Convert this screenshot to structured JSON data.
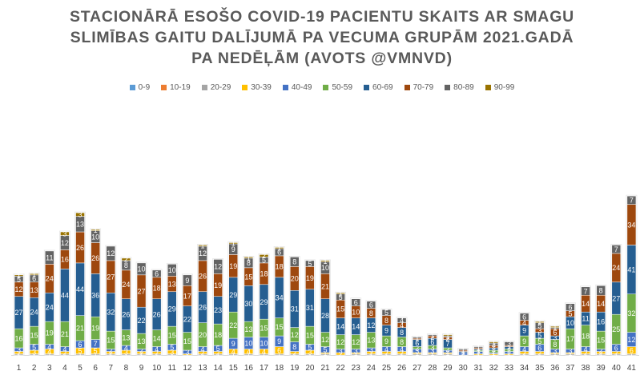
{
  "title_lines": [
    "STACIONĀRĀ ESOŠO COVID-19 PACIENTU SKAITS AR SMAGU",
    "SLIMĪBAS GAITU DALĪJUMĀ PA VECUMA GRUPĀM 2021.GADĀ",
    "PA NEDĒĻĀM (AVOTS @VMNVD)"
  ],
  "chart_data": {
    "type": "bar",
    "stacked": true,
    "title": "STACIONĀRĀ ESOŠO COVID-19 PACIENTU SKAITS AR SMAGU SLIMĪBAS GAITU DALĪJUMĀ PA VECUMA GRUPĀM 2021.GADĀ PA NEDĒĻĀM (AVOTS @VMNVD)",
    "legend_position": "top",
    "grid": false,
    "categories": [
      "1",
      "2",
      "3",
      "4",
      "5",
      "6",
      "7",
      "8",
      "9",
      "10",
      "11",
      "12",
      "13",
      "14",
      "15",
      "16",
      "17",
      "18",
      "19",
      "20",
      "21",
      "22",
      "23",
      "24",
      "25",
      "26",
      "27",
      "28",
      "29",
      "30",
      "31",
      "32",
      "33",
      "34",
      "35",
      "36",
      "37",
      "38",
      "39",
      "40",
      "41"
    ],
    "series": [
      {
        "name": "0-9",
        "color": "#5B9BD5",
        "values": [
          0,
          0,
          0,
          0,
          0,
          0,
          0,
          0,
          0,
          0,
          0,
          0,
          0,
          0,
          0,
          0,
          0,
          0,
          0,
          0,
          0,
          0,
          0,
          0,
          0,
          0,
          0,
          0,
          0,
          0,
          0,
          0,
          0,
          0,
          0,
          0,
          0,
          0,
          0,
          0,
          0
        ]
      },
      {
        "name": "10-19",
        "color": "#ED7D31",
        "values": [
          0,
          0,
          0,
          0,
          0,
          0,
          0,
          0,
          0,
          0,
          0,
          0,
          0,
          0,
          0,
          0,
          0,
          0,
          0,
          0,
          0,
          0,
          0,
          0,
          0,
          0,
          0,
          0,
          0,
          0,
          0,
          0,
          0,
          0,
          0,
          0,
          0,
          0,
          0,
          0,
          0
        ]
      },
      {
        "name": "20-29",
        "color": "#A5A5A5",
        "values": [
          1,
          1,
          1,
          1,
          1,
          1,
          1,
          1,
          1,
          1,
          1,
          0,
          1,
          1,
          1,
          1,
          1,
          1,
          1,
          1,
          1,
          0,
          1,
          1,
          1,
          1,
          1,
          1,
          1,
          0,
          0,
          0,
          0,
          1,
          1,
          1,
          1,
          1,
          1,
          1,
          1
        ]
      },
      {
        "name": "30-39",
        "color": "#FFC000",
        "values": [
          2,
          3,
          4,
          2,
          5,
          5,
          2,
          3,
          2,
          2,
          3,
          1,
          2,
          2,
          4,
          4,
          4,
          6,
          2,
          3,
          1,
          2,
          1,
          2,
          2,
          2,
          1,
          1,
          1,
          0,
          1,
          1,
          1,
          2,
          2,
          1,
          1,
          2,
          2,
          2,
          6
        ]
      },
      {
        "name": "40-49",
        "color": "#4472C4",
        "values": [
          3,
          5,
          4,
          4,
          6,
          7,
          2,
          4,
          2,
          4,
          5,
          3,
          4,
          5,
          9,
          10,
          10,
          9,
          8,
          5,
          5,
          3,
          3,
          3,
          4,
          4,
          3,
          3,
          2,
          2,
          2,
          1,
          2,
          4,
          6,
          3,
          3,
          4,
          2,
          6,
          12
        ]
      },
      {
        "name": "50-59",
        "color": "#70AD47",
        "values": [
          16,
          15,
          19,
          21,
          21,
          19,
          15,
          13,
          13,
          14,
          15,
          15,
          20,
          18,
          22,
          13,
          15,
          15,
          12,
          15,
          12,
          12,
          12,
          13,
          9,
          8,
          2,
          3,
          2,
          0,
          1,
          2,
          2,
          9,
          5,
          8,
          17,
          18,
          15,
          25,
          32
        ]
      },
      {
        "name": "60-69",
        "color": "#255E91",
        "values": [
          27,
          24,
          24,
          44,
          44,
          36,
          32,
          26,
          22,
          26,
          29,
          22,
          26,
          23,
          29,
          30,
          29,
          34,
          31,
          31,
          28,
          14,
          14,
          12,
          9,
          8,
          6,
          6,
          7,
          1,
          1,
          2,
          2,
          9,
          5,
          3,
          10,
          11,
          16,
          27,
          41
        ]
      },
      {
        "name": "70-79",
        "color": "#9E480E",
        "values": [
          12,
          13,
          24,
          16,
          26,
          26,
          27,
          24,
          27,
          18,
          13,
          17,
          26,
          19,
          19,
          15,
          18,
          18,
          20,
          19,
          21,
          15,
          10,
          8,
          8,
          4,
          1,
          2,
          2,
          1,
          1,
          2,
          1,
          4,
          3,
          6,
          5,
          14,
          14,
          24,
          34
        ]
      },
      {
        "name": "80-89",
        "color": "#636363",
        "values": [
          5,
          6,
          11,
          12,
          13,
          10,
          12,
          8,
          10,
          6,
          10,
          9,
          12,
          12,
          9,
          8,
          5,
          6,
          8,
          5,
          10,
          5,
          6,
          6,
          5,
          4,
          1,
          1,
          1,
          1,
          1,
          2,
          3,
          6,
          5,
          1,
          6,
          7,
          8,
          7,
          7
        ]
      },
      {
        "name": "90-99",
        "color": "#997300",
        "values": [
          1,
          1,
          0,
          3,
          3,
          1,
          0,
          2,
          0,
          0,
          0,
          0,
          1,
          0,
          1,
          1,
          2,
          1,
          0,
          0,
          1,
          1,
          0,
          0,
          0,
          0,
          0,
          0,
          1,
          0,
          0,
          1,
          0,
          0,
          1,
          1,
          0,
          0,
          0,
          0,
          0
        ]
      }
    ]
  }
}
